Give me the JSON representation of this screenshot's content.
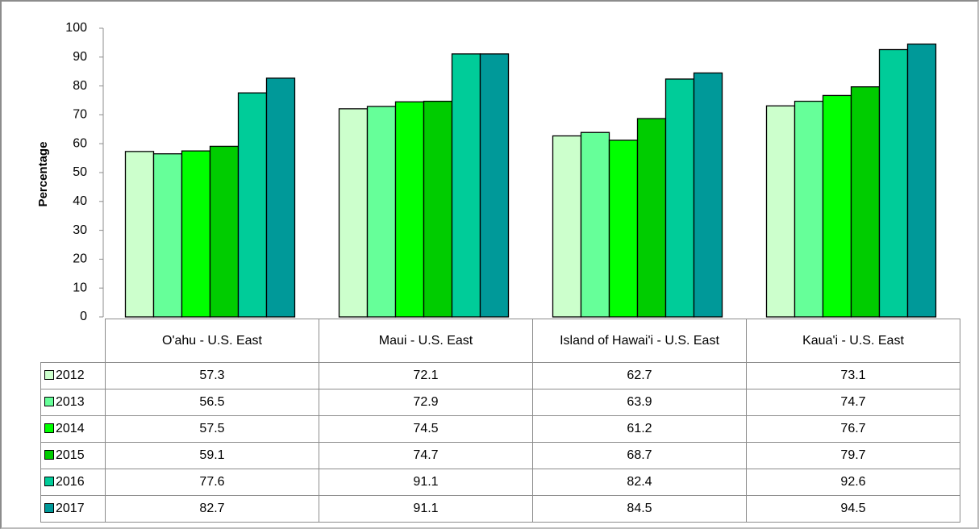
{
  "chart_data": {
    "type": "bar",
    "y_label": "Percentage",
    "categories": [
      "O'ahu - U.S. East",
      "Maui - U.S. East",
      "Island of Hawai'i - U.S. East",
      "Kaua'i - U.S. East"
    ],
    "series": [
      {
        "name": "2012",
        "color": "#ccffcc",
        "values": [
          57.3,
          72.1,
          62.7,
          73.1
        ]
      },
      {
        "name": "2013",
        "color": "#66ff99",
        "values": [
          56.5,
          72.9,
          63.9,
          74.7
        ]
      },
      {
        "name": "2014",
        "color": "#00ff00",
        "values": [
          57.5,
          74.5,
          61.2,
          76.7
        ]
      },
      {
        "name": "2015",
        "color": "#00cc00",
        "values": [
          59.1,
          74.7,
          68.7,
          79.7
        ]
      },
      {
        "name": "2016",
        "color": "#00cc99",
        "values": [
          77.6,
          91.1,
          82.4,
          92.6
        ]
      },
      {
        "name": "2017",
        "color": "#009999",
        "values": [
          82.7,
          91.1,
          84.5,
          94.5
        ]
      }
    ],
    "ylim": [
      0,
      100
    ],
    "yticks": [
      0,
      10,
      20,
      30,
      40,
      50,
      60,
      70,
      80,
      90,
      100
    ],
    "grid": false
  }
}
